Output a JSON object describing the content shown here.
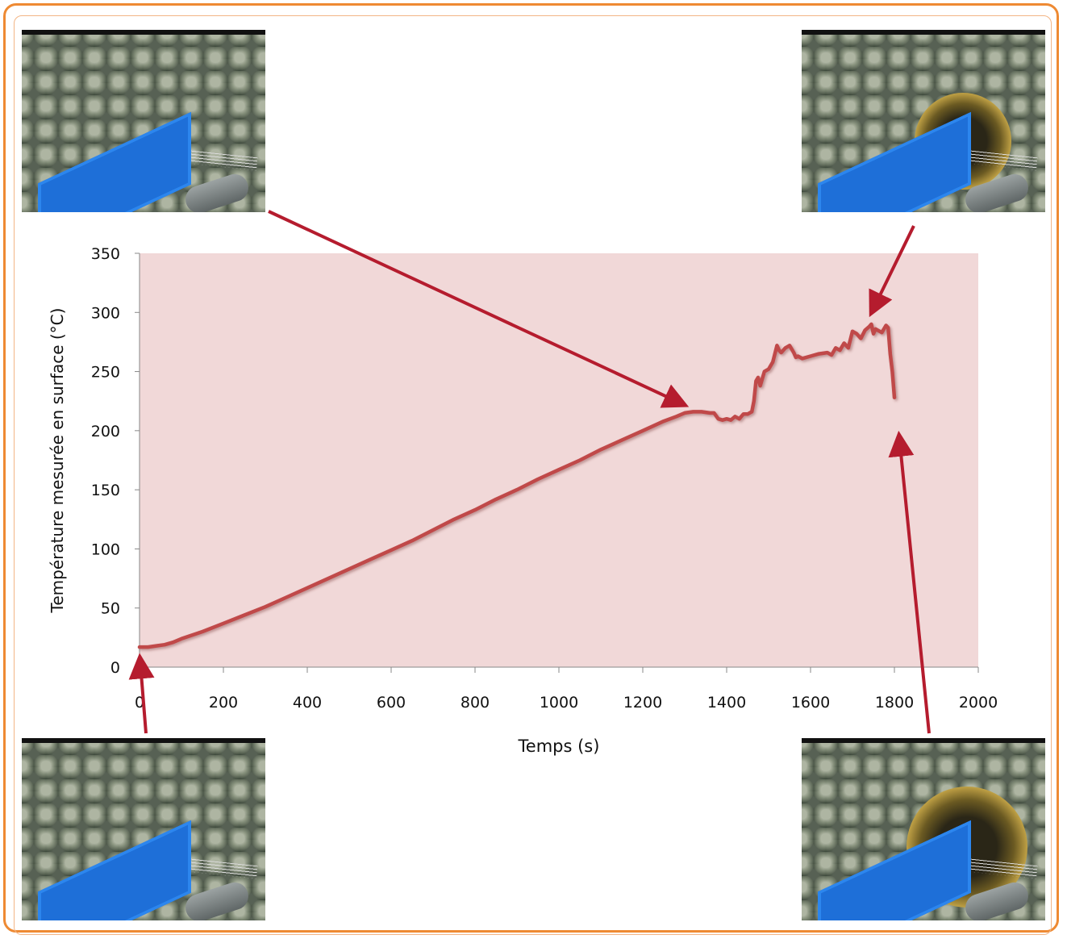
{
  "chart_data": {
    "type": "line",
    "title": "",
    "xlabel": "Temps (s)",
    "ylabel": "Température mesurée en surface (°C)",
    "xlim": [
      0,
      2000
    ],
    "ylim": [
      0,
      350
    ],
    "xticks": [
      0,
      200,
      400,
      600,
      800,
      1000,
      1200,
      1400,
      1600,
      1800,
      2000
    ],
    "yticks": [
      0,
      50,
      100,
      150,
      200,
      250,
      300,
      350
    ],
    "grid": false,
    "plot_background": "#f1d8d8",
    "line_color": "#c0484a",
    "arrow_color": "#b51c2e",
    "series": [
      {
        "x": [
          0,
          20,
          40,
          60,
          80,
          100,
          150,
          200,
          250,
          300,
          350,
          400,
          450,
          500,
          550,
          600,
          650,
          700,
          750,
          800,
          850,
          900,
          950,
          1000,
          1050,
          1100,
          1150,
          1200,
          1250,
          1280,
          1300,
          1320,
          1340,
          1360,
          1370,
          1380,
          1390,
          1400,
          1410,
          1420,
          1430,
          1440,
          1450,
          1460,
          1465,
          1470,
          1475,
          1480,
          1490,
          1500,
          1510,
          1520,
          1525,
          1530,
          1540,
          1550,
          1560,
          1565,
          1570,
          1580,
          1600,
          1620,
          1640,
          1650,
          1660,
          1670,
          1680,
          1690,
          1700,
          1710,
          1720,
          1730,
          1740,
          1745,
          1750,
          1755,
          1760,
          1770,
          1780,
          1785,
          1790,
          1795,
          1800
        ],
        "y": [
          17,
          17,
          18,
          19,
          21,
          24,
          30,
          37,
          44,
          51,
          59,
          67,
          75,
          83,
          91,
          99,
          107,
          116,
          125,
          133,
          142,
          150,
          159,
          167,
          175,
          184,
          192,
          200,
          208,
          212,
          215,
          216,
          216,
          215,
          215,
          210,
          209,
          210,
          209,
          212,
          210,
          214,
          214,
          216,
          225,
          242,
          245,
          238,
          250,
          252,
          258,
          272,
          268,
          266,
          270,
          272,
          266,
          262,
          263,
          261,
          263,
          265,
          266,
          264,
          270,
          268,
          274,
          270,
          284,
          282,
          278,
          285,
          288,
          290,
          282,
          286,
          285,
          283,
          289,
          287,
          265,
          250,
          228
        ]
      }
    ],
    "annotations": [
      {
        "arrow_to": [
          1310,
          220
        ],
        "from": "top-left-photo"
      },
      {
        "arrow_to": [
          1740,
          296
        ],
        "from": "top-right-photo"
      },
      {
        "arrow_to": [
          0,
          12
        ],
        "from": "bottom-left-photo"
      },
      {
        "arrow_to": [
          1810,
          200
        ],
        "from": "bottom-right-photo"
      }
    ]
  },
  "photos": [
    {
      "position": "top-left",
      "state": "intact foam"
    },
    {
      "position": "top-right",
      "state": "burnt hole"
    },
    {
      "position": "bottom-left",
      "state": "intact foam"
    },
    {
      "position": "bottom-right",
      "state": "burnt hole"
    }
  ]
}
